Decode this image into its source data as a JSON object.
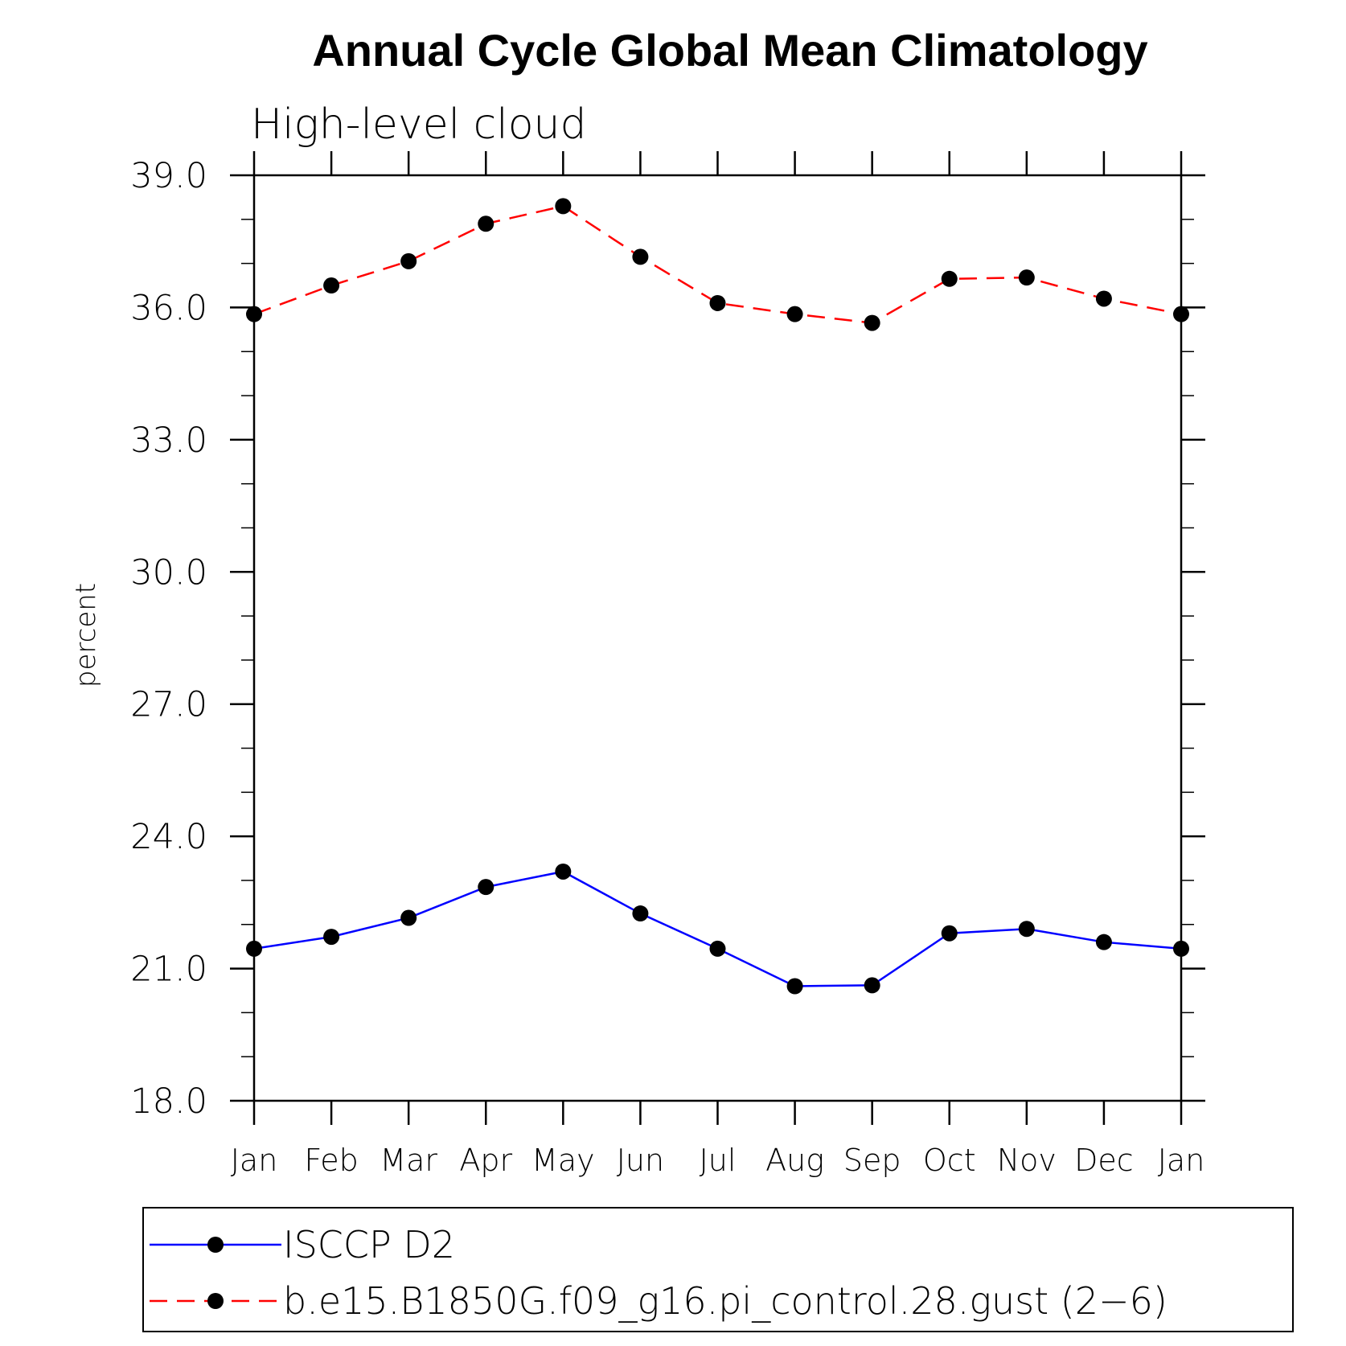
{
  "chart_data": {
    "type": "line",
    "title": "Annual Cycle Global Mean Climatology",
    "subtitle": "High-level cloud",
    "ylabel": "percent",
    "xlabel": "",
    "ylim": [
      18.0,
      39.0
    ],
    "yticks": [
      "18.0",
      "21.0",
      "24.0",
      "27.0",
      "30.0",
      "33.0",
      "36.0",
      "39.0"
    ],
    "categories": [
      "Jan",
      "Feb",
      "Mar",
      "Apr",
      "May",
      "Jun",
      "Jul",
      "Aug",
      "Sep",
      "Oct",
      "Nov",
      "Dec",
      "Jan"
    ],
    "series": [
      {
        "name": "ISCCP D2",
        "color": "#0000ff",
        "dash": "solid",
        "marker": "filled-circle",
        "values": [
          21.45,
          21.72,
          22.15,
          22.85,
          23.2,
          22.25,
          21.45,
          20.6,
          20.62,
          21.8,
          21.9,
          21.6,
          21.45
        ]
      },
      {
        "name": "b.e15.B1850G.f09_g16.pi_control.28.gust (2−6)",
        "color": "#ff0000",
        "dash": "dashed",
        "marker": "filled-circle",
        "values": [
          35.85,
          36.5,
          37.05,
          37.9,
          38.3,
          37.15,
          36.1,
          35.85,
          35.65,
          36.65,
          36.68,
          36.2,
          35.85
        ]
      }
    ],
    "legend_position": "bottom"
  }
}
